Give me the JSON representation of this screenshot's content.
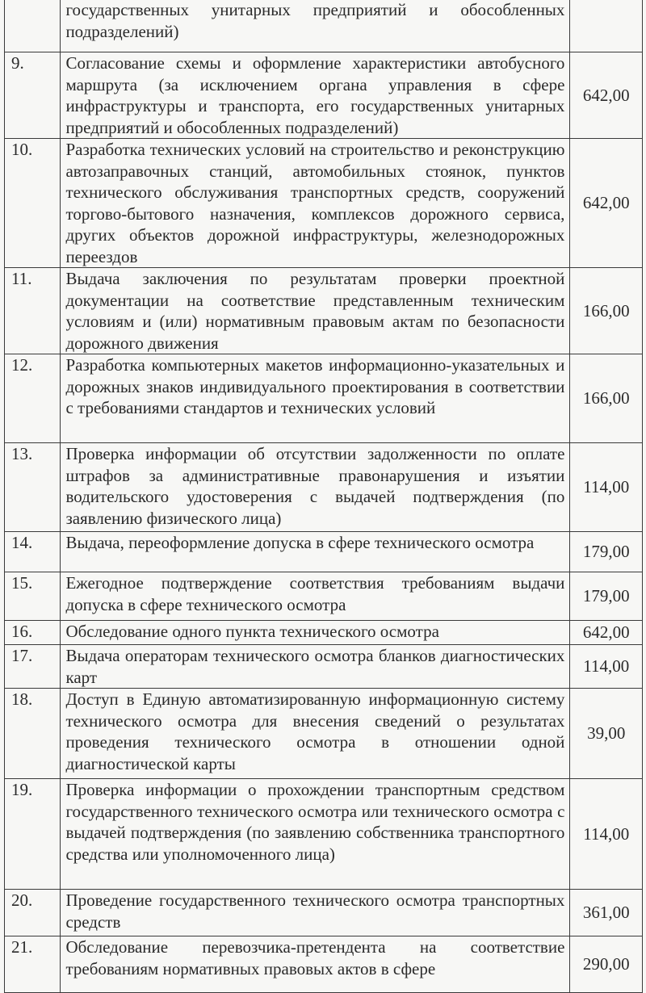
{
  "rows": [
    {
      "num": "",
      "text": "государственных унитарных предприятий и обособленных подразделений)",
      "price": ""
    },
    {
      "num": "9.",
      "text": "Согласование схемы и оформление характеристики автобусного маршрута (за исключением органа управления в сфере инфраструктуры и транспорта, его государственных унитарных предприятий и обособленных подразделений)",
      "price": "642,00"
    },
    {
      "num": "10.",
      "text": "Разработка технических условий на строительство и реконструкцию автозаправочных станций, автомобильных стоянок, пунктов технического обслуживания транспортных средств, сооружений торгово-бытового назначения, комплексов дорожного сервиса, других объектов дорожной инфраструктуры, железнодорожных переездов",
      "price": "642,00"
    },
    {
      "num": "11.",
      "text": "Выдача заключения по результатам проверки проектной документации на соответствие представленным техническим условиям и (или) нормативным правовым актам по безопасности дорожного движения",
      "price": "166,00"
    },
    {
      "num": "12.",
      "text": "Разработка компьютерных макетов информационно-указательных и дорожных знаков индивидуального проектирования в соответствии с требованиями стандартов и технических условий",
      "price": "166,00"
    },
    {
      "num": "13.",
      "text": "Проверка информации об отсутствии задолженности по оплате штрафов за административные правонарушения и изъятии водительского удостоверения с выдачей подтверждения (по заявлению физического лица)",
      "price": "114,00"
    },
    {
      "num": "14.",
      "text": "Выдача, переоформление допуска в сфере технического осмотра",
      "price": "179,00"
    },
    {
      "num": "15.",
      "text": "Ежегодное подтверждение соответствия требованиям выдачи допуска в сфере технического осмотра",
      "price": "179,00"
    },
    {
      "num": "16.",
      "text": "Обследование одного пункта технического осмотра",
      "price": "642,00"
    },
    {
      "num": "17.",
      "text": "Выдача операторам технического осмотра бланков диагностических карт",
      "price": "114,00"
    },
    {
      "num": "18.",
      "text": "Доступ в Единую автоматизированную информационную систему технического осмотра для внесения сведений о результатах проведения технического осмотра в отношении одной диагностической карты",
      "price": "39,00"
    },
    {
      "num": "19.",
      "text": "Проверка информации о прохождении транспортным средством государственного технического осмотра или технического осмотра с выдачей подтверждения (по заявлению собственника транспортного средства или уполномоченного лица)",
      "price": "114,00"
    },
    {
      "num": "20.",
      "text": "Проведение государственного технического осмотра транспортных средств",
      "price": "361,00"
    },
    {
      "num": "21.",
      "text": "Обследование перевозчика-претендента на соответствие требованиям нормативных правовых актов в сфере",
      "price": "290,00"
    }
  ]
}
